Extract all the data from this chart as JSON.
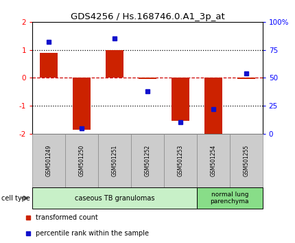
{
  "title": "GDS4256 / Hs.168746.0.A1_3p_at",
  "samples": [
    "GSM501249",
    "GSM501250",
    "GSM501251",
    "GSM501252",
    "GSM501253",
    "GSM501254",
    "GSM501255"
  ],
  "transformed_count": [
    0.9,
    -1.85,
    1.0,
    -0.05,
    -1.55,
    -2.0,
    -0.05
  ],
  "percentile_rank": [
    82,
    5,
    85,
    38,
    10,
    22,
    54
  ],
  "ylim_left": [
    -2,
    2
  ],
  "ylim_right": [
    0,
    100
  ],
  "yticks_left": [
    -2,
    -1,
    0,
    1,
    2
  ],
  "yticks_right": [
    0,
    25,
    50,
    75,
    100
  ],
  "ytick_labels_right": [
    "0",
    "25",
    "50",
    "75",
    "100%"
  ],
  "bar_color": "#cc2200",
  "dot_color": "#1111cc",
  "zero_line_color": "#cc0000",
  "dotted_line_color": "#000000",
  "group1_samples": [
    0,
    1,
    2,
    3,
    4
  ],
  "group2_samples": [
    5,
    6
  ],
  "group1_label": "caseous TB granulomas",
  "group2_label": "normal lung\nparenchyma",
  "group1_color": "#c8f0c8",
  "group2_color": "#88dd88",
  "cell_type_label": "cell type",
  "legend_red_label": "transformed count",
  "legend_blue_label": "percentile rank within the sample",
  "bar_width": 0.55,
  "sample_label_color": "#cccccc",
  "sample_border_color": "#888888"
}
